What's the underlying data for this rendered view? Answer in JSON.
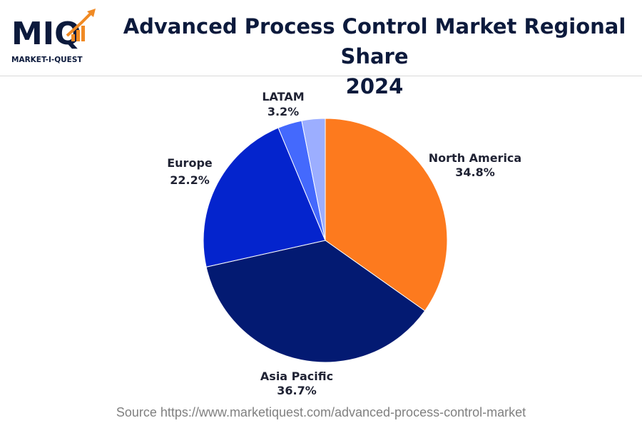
{
  "brand": {
    "logo_text": "MIQ",
    "logo_subtext": "MARKET-I-QUEST"
  },
  "header": {
    "title_line1": "Advanced Process Control Market Regional Share",
    "title_line2": "2024"
  },
  "footer": {
    "source": "Source https://www.marketiquest.com/advanced-process-control-market"
  },
  "colors": {
    "title": "#0c1a3c",
    "brand_orange": "#f08a24",
    "brand_navy": "#0c1a3c"
  },
  "chart_data": {
    "type": "pie",
    "title": "Advanced Process Control Market Regional Share 2024",
    "slices": [
      {
        "label": "North America",
        "value": 34.8,
        "value_label": "34.8%",
        "color": "#fd7a1e"
      },
      {
        "label": "Asia Pacific",
        "value": 36.7,
        "value_label": "36.7%",
        "color": "#031a72"
      },
      {
        "label": "Europe",
        "value": 22.2,
        "value_label": "22.2%",
        "color": "#0424cd"
      },
      {
        "label": "LATAM",
        "value": 3.2,
        "value_label": "3.2%",
        "color": "#4469fd"
      },
      {
        "label": "",
        "value": 3.1,
        "value_label": "",
        "color": "#9caeff"
      }
    ],
    "start_angle": "12 o'clock",
    "direction": "clockwise",
    "legend": "none"
  }
}
